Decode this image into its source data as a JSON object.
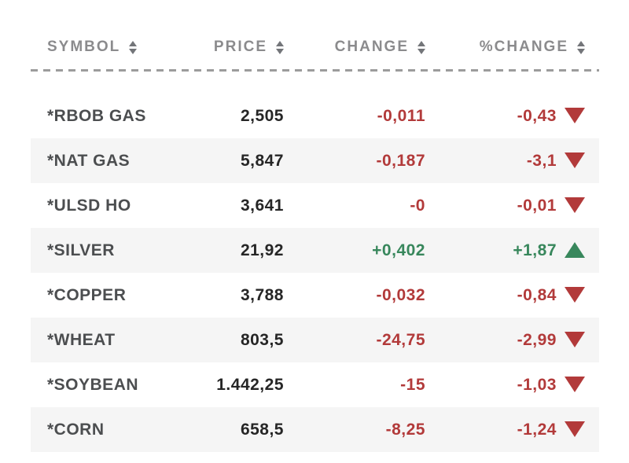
{
  "colors": {
    "neg": "#b23a3a",
    "pos": "#38875c",
    "header": "#8b8b8d",
    "symbol": "#4c4e50",
    "number": "#262626",
    "rowalt": "#f5f5f5",
    "divider": "#9c9c9c",
    "sorticon": "#737579"
  },
  "table": {
    "headers": [
      {
        "label": "SYMBOL"
      },
      {
        "label": "PRICE"
      },
      {
        "label": "CHANGE"
      },
      {
        "label": "%CHANGE"
      }
    ],
    "rows": [
      {
        "symbol": "*RBOB GAS",
        "price": "2,505",
        "change": "-0,011",
        "pct_change": "-0,43",
        "direction": "down"
      },
      {
        "symbol": "*NAT GAS",
        "price": "5,847",
        "change": "-0,187",
        "pct_change": "-3,1",
        "direction": "down"
      },
      {
        "symbol": "*ULSD HO",
        "price": "3,641",
        "change": "-0",
        "pct_change": "-0,01",
        "direction": "down"
      },
      {
        "symbol": "*SILVER",
        "price": "21,92",
        "change": "+0,402",
        "pct_change": "+1,87",
        "direction": "up"
      },
      {
        "symbol": "*COPPER",
        "price": "3,788",
        "change": "-0,032",
        "pct_change": "-0,84",
        "direction": "down"
      },
      {
        "symbol": "*WHEAT",
        "price": "803,5",
        "change": "-24,75",
        "pct_change": "-2,99",
        "direction": "down"
      },
      {
        "symbol": "*SOYBEAN",
        "price": "1.442,25",
        "change": "-15",
        "pct_change": "-1,03",
        "direction": "down"
      },
      {
        "symbol": "*CORN",
        "price": "658,5",
        "change": "-8,25",
        "pct_change": "-1,24",
        "direction": "down"
      }
    ]
  },
  "chart_data": {
    "type": "table",
    "columns": [
      "SYMBOL",
      "PRICE",
      "CHANGE",
      "%CHANGE"
    ],
    "rows": [
      [
        "*RBOB GAS",
        "2,505",
        "-0,011",
        "-0,43"
      ],
      [
        "*NAT GAS",
        "5,847",
        "-0,187",
        "-3,1"
      ],
      [
        "*ULSD HO",
        "3,641",
        "-0",
        "-0,01"
      ],
      [
        "*SILVER",
        "21,92",
        "+0,402",
        "+1,87"
      ],
      [
        "*COPPER",
        "3,788",
        "-0,032",
        "-0,84"
      ],
      [
        "*WHEAT",
        "803,5",
        "-24,75",
        "-2,99"
      ],
      [
        "*SOYBEAN",
        "1.442,25",
        "-15",
        "-1,03"
      ],
      [
        "*CORN",
        "658,5",
        "-8,25",
        "-1,24"
      ]
    ],
    "directions": [
      "down",
      "down",
      "down",
      "up",
      "down",
      "down",
      "down",
      "down"
    ],
    "legend_position": "none",
    "notes": "decimal comma formatting; red = decline, green = advance"
  }
}
